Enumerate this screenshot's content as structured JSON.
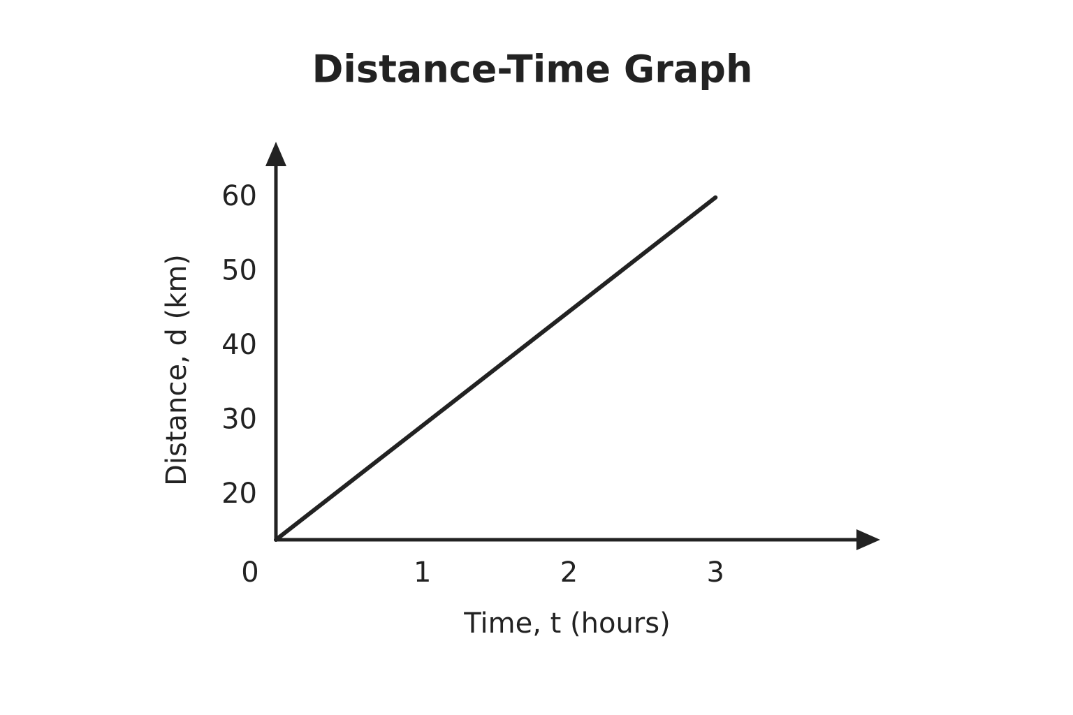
{
  "chart_data": {
    "type": "line",
    "title": "Distance-Time Graph",
    "x_label": "Time, t (hours)",
    "y_label": "Distance, d (km)",
    "x": [
      0,
      3
    ],
    "series": [
      {
        "name": "Distance",
        "color": "#222222",
        "values": [
          14,
          60
        ]
      }
    ],
    "xlim": [
      0,
      4.1
    ],
    "xticks": [
      0,
      1,
      2,
      3
    ],
    "ylim": [
      14,
      67.3
    ],
    "yticks": [
      20,
      30,
      40,
      50,
      60
    ],
    "grid": false
  }
}
